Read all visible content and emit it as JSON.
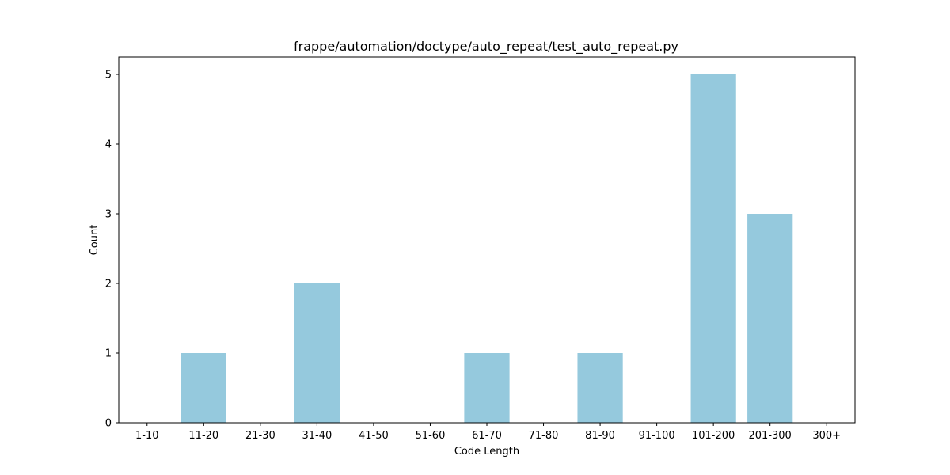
{
  "chart_data": {
    "type": "bar",
    "title": "frappe/automation/doctype/auto_repeat/test_auto_repeat.py",
    "xlabel": "Code Length",
    "ylabel": "Count",
    "categories": [
      "1-10",
      "11-20",
      "21-30",
      "31-40",
      "41-50",
      "51-60",
      "61-70",
      "71-80",
      "81-90",
      "91-100",
      "101-200",
      "201-300",
      "300+"
    ],
    "values": [
      0,
      1,
      0,
      2,
      0,
      0,
      1,
      0,
      1,
      0,
      5,
      3,
      0
    ],
    "ylim": [
      0,
      5.25
    ],
    "yticks": [
      0,
      1,
      2,
      3,
      4,
      5
    ],
    "bar_color": "#95c9dd",
    "grid": false,
    "legend": "none"
  }
}
